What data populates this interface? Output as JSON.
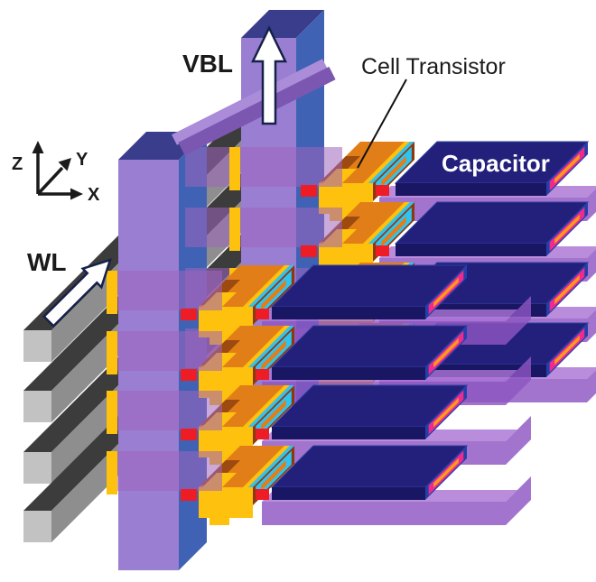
{
  "diagram": {
    "description": "3D schematic of a stacked DRAM cell array",
    "background_color": "#ffffff",
    "labels": {
      "wordline": "WL",
      "vertical_bitline": "VBL",
      "cell_transistor": "Cell Transistor",
      "capacitor": "Capacitor"
    },
    "axis_labels": {
      "vertical": "Z",
      "depth": "Y",
      "horizontal": "X"
    },
    "structure": {
      "layers": 4,
      "rows": 2,
      "wordline_count": 4,
      "transistors_per_row": 4,
      "capacitors_per_row": 4
    },
    "colors": {
      "text": "#1a1a1a",
      "capacitor_label_text": "#ffffff",
      "wordline_top": "#3c3c3c",
      "wordline_side": "#8e8e8e",
      "wordline_front": "#c2c2c2",
      "pillar_front": "#9a7ed2",
      "pillar_side": "#3f62b4",
      "pillar_top": "#3a3c8c",
      "beam_light": "#ab8cd8",
      "beam_dark": "#7b57b1",
      "oxide_band": "#9e64be",
      "plate_light": "#aa73d4",
      "plate_main": "#8d56c2",
      "transistor_top": "#e27e17",
      "transistor_front": "#fec10d",
      "transistor_brown": "#9c4a10",
      "transistor_cyan": "#2fc3f2",
      "transistor_end": "#8a3a0e",
      "contact_red": "#ee1c25",
      "capacitor_top": "#23207c",
      "capacitor_edge": "#2e3f9e",
      "capacitor_front": "#191663",
      "capacitor_end_blue": "#2440a8",
      "capacitor_end_magenta": "#ee2a8f",
      "capacitor_end_orange": "#f89c1b",
      "arrow_fill": "#ffffff",
      "arrow_outline": "#16214a",
      "leader_line": "#111111"
    }
  }
}
